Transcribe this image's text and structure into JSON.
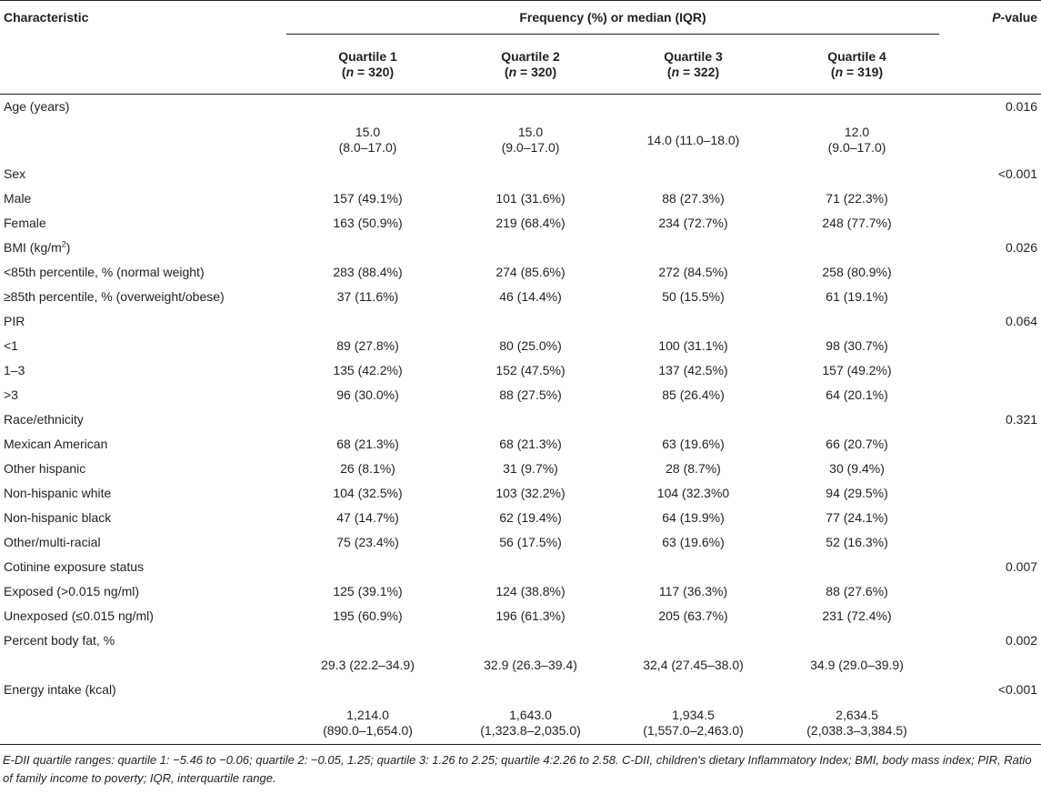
{
  "header": {
    "characteristic": "Characteristic",
    "group_title": "Frequency (%) or median (IQR)",
    "pvalue_italic": "P",
    "pvalue_rest": "-value",
    "n_italic": "n",
    "quartiles": [
      {
        "label": "Quartile 1",
        "n_text": " = 320)"
      },
      {
        "label": "Quartile 2",
        "n_text": " = 320)"
      },
      {
        "label": "Quartile 3",
        "n_text": " = 322)"
      },
      {
        "label": "Quartile 4",
        "n_text": " = 319)"
      }
    ]
  },
  "rows": [
    {
      "label": "Age (years)",
      "p": "0.016"
    },
    {
      "label": "",
      "q1": [
        "15.0",
        "(8.0–17.0)"
      ],
      "q2": [
        "15.0",
        "(9.0–17.0)"
      ],
      "q3": [
        "14.0 (11.0–18.0)"
      ],
      "q4": [
        "12.0",
        "(9.0–17.0)"
      ]
    },
    {
      "label": "Sex",
      "p": "<0.001"
    },
    {
      "label": "Male",
      "q1": "157 (49.1%)",
      "q2": "101 (31.6%)",
      "q3": "88 (27.3%)",
      "q4": "71 (22.3%)"
    },
    {
      "label": "Female",
      "q1": "163 (50.9%)",
      "q2": "219 (68.4%)",
      "q3": "234 (72.7%)",
      "q4": "248 (77.7%)"
    },
    {
      "label": "BMI (kg/m",
      "sup": "2",
      "label_tail": ")",
      "p": "0.026"
    },
    {
      "label": "<85th percentile, % (normal weight)",
      "q1": "283 (88.4%)",
      "q2": "274 (85.6%)",
      "q3": "272 (84.5%)",
      "q4": "258 (80.9%)"
    },
    {
      "label": "≥85th percentile, % (overweight/obese)",
      "q1": "37 (11.6%)",
      "q2": "46 (14.4%)",
      "q3": "50 (15.5%)",
      "q4": "61 (19.1%)"
    },
    {
      "label": "PIR",
      "p": "0.064"
    },
    {
      "label": "<1",
      "q1": "89 (27.8%)",
      "q2": "80 (25.0%)",
      "q3": "100 (31.1%)",
      "q4": "98 (30.7%)"
    },
    {
      "label": "1–3",
      "q1": "135 (42.2%)",
      "q2": "152 (47.5%)",
      "q3": "137 (42.5%)",
      "q4": "157 (49.2%)"
    },
    {
      "label": ">3",
      "q1": "96 (30.0%)",
      "q2": "88 (27.5%)",
      "q3": "85 (26.4%)",
      "q4": "64 (20.1%)"
    },
    {
      "label": "Race/ethnicity",
      "p": "0.321"
    },
    {
      "label": "Mexican American",
      "q1": "68 (21.3%)",
      "q2": "68 (21.3%)",
      "q3": "63 (19.6%)",
      "q4": "66 (20.7%)"
    },
    {
      "label": "Other hispanic",
      "q1": "26 (8.1%)",
      "q2": "31 (9.7%)",
      "q3": "28 (8.7%)",
      "q4": "30 (9.4%)"
    },
    {
      "label": "Non-hispanic white",
      "q1": "104 (32.5%)",
      "q2": "103 (32.2%)",
      "q3": "104 (32.3%0",
      "q4": "94 (29.5%)"
    },
    {
      "label": "Non-hispanic black",
      "q1": "47 (14.7%)",
      "q2": "62 (19.4%)",
      "q3": "64 (19.9%)",
      "q4": "77 (24.1%)"
    },
    {
      "label": "Other/multi-racial",
      "q1": "75 (23.4%)",
      "q2": "56 (17.5%)",
      "q3": "63 (19.6%)",
      "q4": "52 (16.3%)"
    },
    {
      "label": "Cotinine exposure status",
      "p": "0.007"
    },
    {
      "label": "Exposed (>0.015 ng/ml)",
      "q1": "125 (39.1%)",
      "q2": "124 (38.8%)",
      "q3": "117 (36.3%)",
      "q4": "88 (27.6%)"
    },
    {
      "label": "Unexposed (≤0.015 ng/ml)",
      "q1": "195 (60.9%)",
      "q2": "196 (61.3%)",
      "q3": "205 (63.7%)",
      "q4": "231 (72.4%)"
    },
    {
      "label": "Percent body fat, %",
      "p": "0.002"
    },
    {
      "label": "",
      "q1": "29.3 (22.2–34.9)",
      "q2": "32.9 (26.3–39.4)",
      "q3": "32,4 (27.45–38.0)",
      "q4": "34.9 (29.0–39.9)"
    },
    {
      "label": "Energy intake (kcal)",
      "p": "<0.001"
    },
    {
      "label": "",
      "q1": [
        "1,214.0",
        "(890.0–1,654.0)"
      ],
      "q2": [
        "1,643.0",
        "(1,323.8–2,035.0)"
      ],
      "q3": [
        "1,934.5",
        "(1,557.0–2,463.0)"
      ],
      "q4": [
        "2,634.5",
        "(2,038.3–3,384.5)"
      ]
    }
  ],
  "footnote": "E-DII quartile ranges: quartile 1: −5.46 to −0.06; quartile 2: −0.05, 1.25; quartile 3: 1.26 to 2.25; quartile 4:2.26 to 2.58. C-DII, children's dietary Inflammatory Index; BMI, body mass index; PIR, Ratio of family income to poverty; IQR, interquartile range."
}
